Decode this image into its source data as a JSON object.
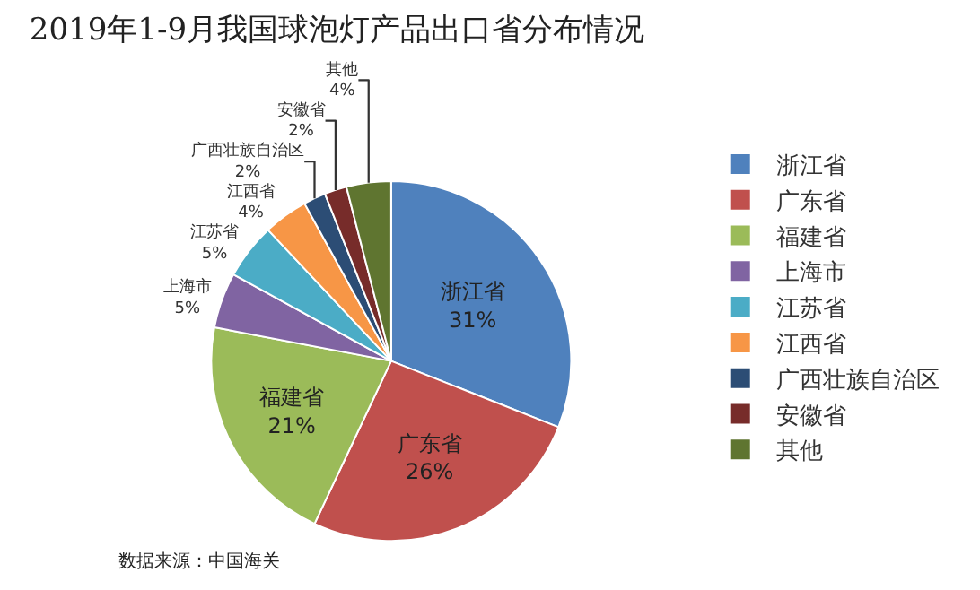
{
  "chart_data": {
    "type": "pie",
    "title": "2019年1-9月我国球泡灯产品出口省分布情况",
    "categories": [
      "浙江省",
      "广东省",
      "福建省",
      "上海市",
      "江苏省",
      "江西省",
      "广西壮族自治区",
      "安徽省",
      "其他"
    ],
    "values": [
      31,
      26,
      21,
      5,
      5,
      4,
      2,
      2,
      4
    ],
    "colors": [
      "#4f81bd",
      "#c0504d",
      "#9bbb59",
      "#8064a2",
      "#4bacc6",
      "#f79646",
      "#2c4d75",
      "#772c2a",
      "#5f7530"
    ],
    "value_labels": [
      "31%",
      "26%",
      "21%",
      "5%",
      "5%",
      "4%",
      "2%",
      "2%",
      "4%"
    ],
    "legend": "right",
    "annotations": [
      "数据来源：中国海关"
    ]
  }
}
